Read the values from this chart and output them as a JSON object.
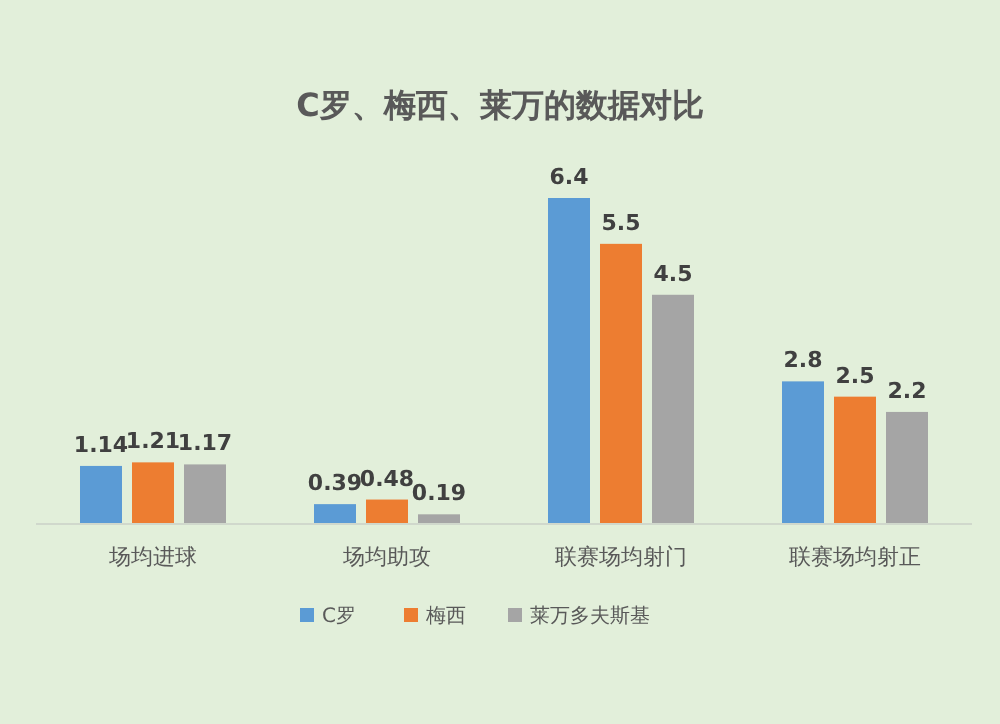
{
  "chart_data": {
    "type": "bar",
    "title": "C罗、梅西、莱万的数据对比",
    "categories": [
      "场均进球",
      "场均助攻",
      "联赛场均射门",
      "联赛场均射正"
    ],
    "series": [
      {
        "name": "C罗",
        "color": "#5b9bd5",
        "values": [
          1.14,
          0.39,
          6.4,
          2.8
        ]
      },
      {
        "name": "梅西",
        "color": "#ed7d31",
        "values": [
          1.21,
          0.48,
          5.5,
          2.5
        ]
      },
      {
        "name": "莱万多夫斯基",
        "color": "#a5a5a5",
        "values": [
          1.17,
          0.19,
          4.5,
          2.2
        ]
      }
    ],
    "data_labels": true,
    "legend": "bottom"
  }
}
